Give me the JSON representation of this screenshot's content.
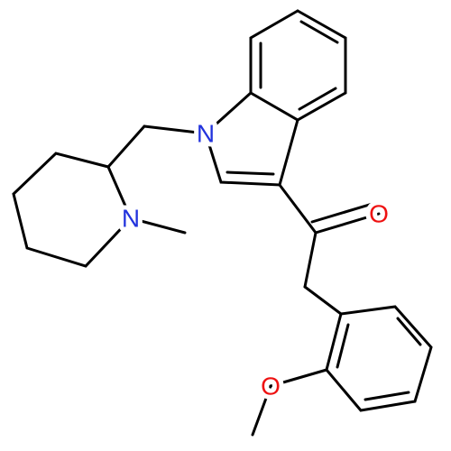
{
  "atoms": [
    {
      "label": "N"
    },
    {
      "label": "N"
    },
    {
      "label": "O"
    },
    {
      "label": "O"
    }
  ]
}
